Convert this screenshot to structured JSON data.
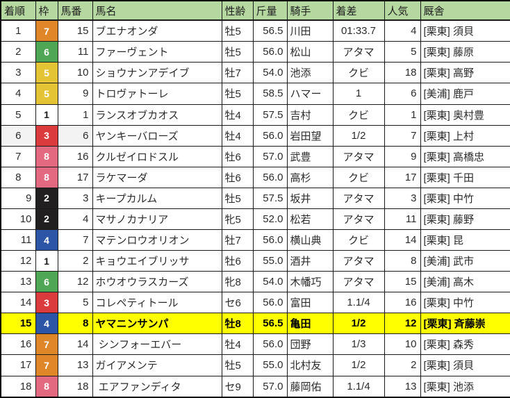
{
  "app": {
    "description": "horse-race result sheet (spreadsheet view)"
  },
  "colors": {
    "header_bg": "#b5d8a1",
    "highlight_bg": "#ffff00",
    "selection_bg": "#f3f3f4",
    "grid_border": "#1a1a1a",
    "text": "#2b2b2b",
    "frame_colors": {
      "1": {
        "bg": "#ffffff",
        "text": "#1a1a1a"
      },
      "2": {
        "bg": "#211f1f",
        "text": "#ffffff"
      },
      "3": {
        "bg": "#dc3b3e",
        "text": "#ffffff"
      },
      "4": {
        "bg": "#2c55a6",
        "text": "#ffffff"
      },
      "5": {
        "bg": "#e4c334",
        "text": "#ffffff"
      },
      "6": {
        "bg": "#4fa654",
        "text": "#ffffff"
      },
      "7": {
        "bg": "#de8628",
        "text": "#ffffff"
      },
      "8": {
        "bg": "#e2697f",
        "text": "#ffffff"
      }
    }
  },
  "table": {
    "columns": [
      {
        "key": "rank",
        "label": "着順"
      },
      {
        "key": "frame",
        "label": "枠"
      },
      {
        "key": "number",
        "label": "馬番"
      },
      {
        "key": "name",
        "label": "馬名"
      },
      {
        "key": "sex_age",
        "label": "性齢"
      },
      {
        "key": "weight",
        "label": "斤量"
      },
      {
        "key": "jockey",
        "label": "騎手"
      },
      {
        "key": "margin",
        "label": "着差"
      },
      {
        "key": "popularity",
        "label": "人気"
      },
      {
        "key": "stable",
        "label": "厩舎"
      }
    ],
    "rows": [
      {
        "rank": 1,
        "frame": 7,
        "number": 15,
        "name": "ブエナオンダ",
        "sex_age": "牡5",
        "weight": "56.5",
        "jockey": "川田",
        "margin": "01:33.7",
        "popularity": 4,
        "stable": "[栗東] 須貝"
      },
      {
        "rank": 2,
        "frame": 6,
        "number": 11,
        "name": "ファーヴェント",
        "sex_age": "牡5",
        "weight": "56.0",
        "jockey": "松山",
        "margin": "アタマ",
        "popularity": 5,
        "stable": "[栗東] 藤原"
      },
      {
        "rank": 3,
        "frame": 5,
        "number": 10,
        "name": "ショウナンアデイブ",
        "sex_age": "牡7",
        "weight": "54.0",
        "jockey": "池添",
        "margin": "クビ",
        "popularity": 18,
        "stable": "[栗東] 高野"
      },
      {
        "rank": 4,
        "frame": 5,
        "number": 9,
        "name": "トロヴァトーレ",
        "sex_age": "牡5",
        "weight": "58.5",
        "jockey": "ハマー",
        "margin": "1",
        "popularity": 6,
        "stable": "[美浦] 鹿戸"
      },
      {
        "rank": 5,
        "frame": 1,
        "number": 1,
        "name": "ランスオブカオス",
        "sex_age": "牡4",
        "weight": "57.5",
        "jockey": "吉村",
        "margin": "クビ",
        "popularity": 1,
        "stable": "[栗東] 奥村豊"
      },
      {
        "rank": 6,
        "frame": 3,
        "number": 6,
        "name": "ヤンキーバローズ",
        "sex_age": "牡4",
        "weight": "56.0",
        "jockey": "岩田望",
        "margin": "1/2",
        "popularity": 7,
        "stable": "[栗東] 上村",
        "selected": true
      },
      {
        "rank": 7,
        "frame": 8,
        "number": 16,
        "name": "クルゼイロドスル",
        "sex_age": "牡6",
        "weight": "57.0",
        "jockey": "武豊",
        "margin": "アタマ",
        "popularity": 9,
        "stable": "[栗東] 高橋忠"
      },
      {
        "rank": 8,
        "frame": 8,
        "number": 17,
        "name": "ラケマーダ",
        "sex_age": "牡6",
        "weight": "56.0",
        "jockey": "高杉",
        "margin": "クビ",
        "popularity": 17,
        "stable": "[栗東] 千田"
      },
      {
        "rank": 9,
        "frame": 2,
        "number": 3,
        "name": "キープカルム",
        "sex_age": "牡5",
        "weight": "57.5",
        "jockey": "坂井",
        "margin": "アタマ",
        "popularity": 3,
        "stable": "[栗東] 中竹"
      },
      {
        "rank": 10,
        "frame": 2,
        "number": 4,
        "name": "マサノカナリア",
        "sex_age": "牝5",
        "weight": "52.0",
        "jockey": "松若",
        "margin": "アタマ",
        "popularity": 11,
        "stable": "[栗東] 藤野"
      },
      {
        "rank": 11,
        "frame": 4,
        "number": 7,
        "name": "マテンロウオリオン",
        "sex_age": "牡7",
        "weight": "56.0",
        "jockey": "横山典",
        "margin": "クビ",
        "popularity": 14,
        "stable": "[栗東] 昆"
      },
      {
        "rank": 12,
        "frame": 1,
        "number": 2,
        "name": "キョウエイブリッサ",
        "sex_age": "牡6",
        "weight": "55.0",
        "jockey": "酒井",
        "margin": "アタマ",
        "popularity": 8,
        "stable": "[美浦] 武市"
      },
      {
        "rank": 13,
        "frame": 6,
        "number": 12,
        "name": "ホウオウラスカーズ",
        "sex_age": "牝8",
        "weight": "54.0",
        "jockey": "木幡巧",
        "margin": "アタマ",
        "popularity": 15,
        "stable": "[美浦] 高木"
      },
      {
        "rank": 14,
        "frame": 3,
        "number": 5,
        "name": "コレペティトール",
        "sex_age": "セ6",
        "weight": "56.0",
        "jockey": "富田",
        "margin": "1.1/4",
        "popularity": 16,
        "stable": "[栗東] 中竹"
      },
      {
        "rank": 15,
        "frame": 4,
        "number": 8,
        "name": "ヤマニンサンパ",
        "sex_age": "牡8",
        "weight": "56.5",
        "jockey": "亀田",
        "margin": "1/2",
        "popularity": 12,
        "stable": "[栗東] 斉藤崇",
        "highlighted": true
      },
      {
        "rank": 16,
        "frame": 7,
        "number": 14,
        "name": " シンフォーエバー",
        "sex_age": "牡4",
        "weight": "56.0",
        "jockey": "団野",
        "margin": "1/3",
        "popularity": 10,
        "stable": "[栗東] 森秀"
      },
      {
        "rank": 17,
        "frame": 7,
        "number": 13,
        "name": "ガイアメンテ",
        "sex_age": "牡5",
        "weight": "55.0",
        "jockey": "北村友",
        "margin": "1/2",
        "popularity": 2,
        "stable": "[栗東] 須貝"
      },
      {
        "rank": 18,
        "frame": 8,
        "number": 18,
        "name": " エアファンディタ",
        "sex_age": "セ9",
        "weight": "57.0",
        "jockey": "藤岡佑",
        "margin": "1.1/4",
        "popularity": 13,
        "stable": "[栗東] 池添"
      }
    ]
  }
}
